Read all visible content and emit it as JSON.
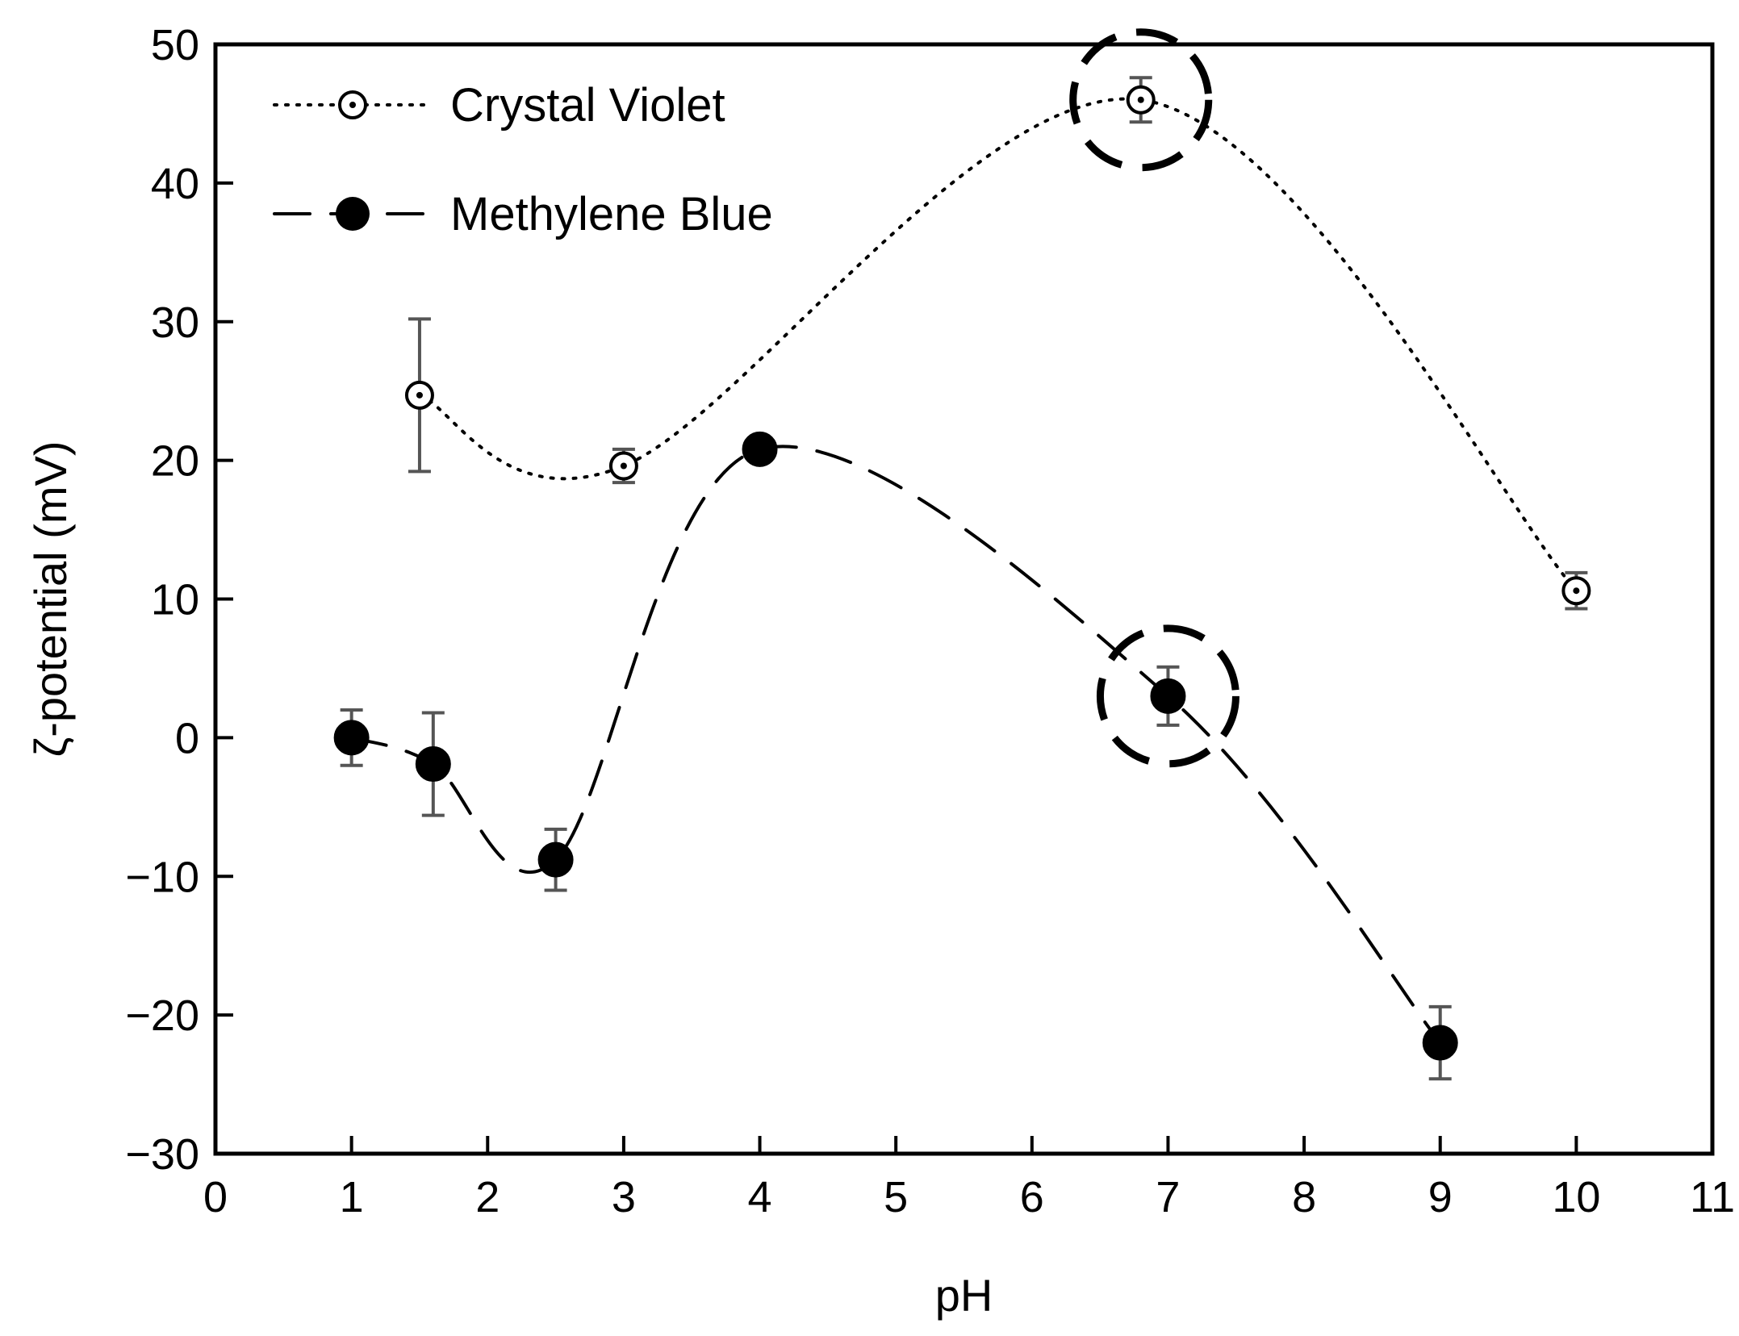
{
  "chart_data": {
    "type": "scatter",
    "xlabel": "pH",
    "ylabel": "ζ-potential (mV)",
    "xlim": [
      0,
      11
    ],
    "ylim": [
      -30,
      50
    ],
    "xticks": [
      "0",
      "1",
      "2",
      "3",
      "4",
      "5",
      "6",
      "7",
      "8",
      "9",
      "10",
      "11"
    ],
    "yticks": [
      "−30",
      "−20",
      "−10",
      "0",
      "10",
      "20",
      "30",
      "40",
      "50"
    ],
    "grid": false,
    "legend_position": "top-left",
    "series": [
      {
        "name": "Crystal Violet",
        "marker": "open-circle-dot",
        "line": "dotted smooth",
        "color": "#000000",
        "points": [
          {
            "x": 1.5,
            "y": 24.7,
            "err": 5.5
          },
          {
            "x": 3.0,
            "y": 19.6,
            "err": 1.2
          },
          {
            "x": 6.8,
            "y": 46.0,
            "err": 1.6
          },
          {
            "x": 10.0,
            "y": 10.6,
            "err": 1.3
          }
        ]
      },
      {
        "name": "Methylene Blue",
        "marker": "filled-circle",
        "line": "dashed smooth",
        "color": "#000000",
        "points": [
          {
            "x": 1.0,
            "y": 0.0,
            "err": 2.0
          },
          {
            "x": 1.6,
            "y": -1.9,
            "err": 3.7
          },
          {
            "x": 2.5,
            "y": -8.8,
            "err": 2.2
          },
          {
            "x": 4.0,
            "y": 20.8,
            "err": 0.5
          },
          {
            "x": 7.0,
            "y": 3.0,
            "err": 2.1
          },
          {
            "x": 9.0,
            "y": -22.0,
            "err": 2.6
          }
        ]
      }
    ],
    "highlights": [
      {
        "series": "Crystal Violet",
        "x": 6.8,
        "y": 46.0,
        "style": "dashed circle"
      },
      {
        "series": "Methylene Blue",
        "x": 7.0,
        "y": 3.0,
        "style": "dashed circle"
      }
    ],
    "error_bar_color": "#555555"
  }
}
